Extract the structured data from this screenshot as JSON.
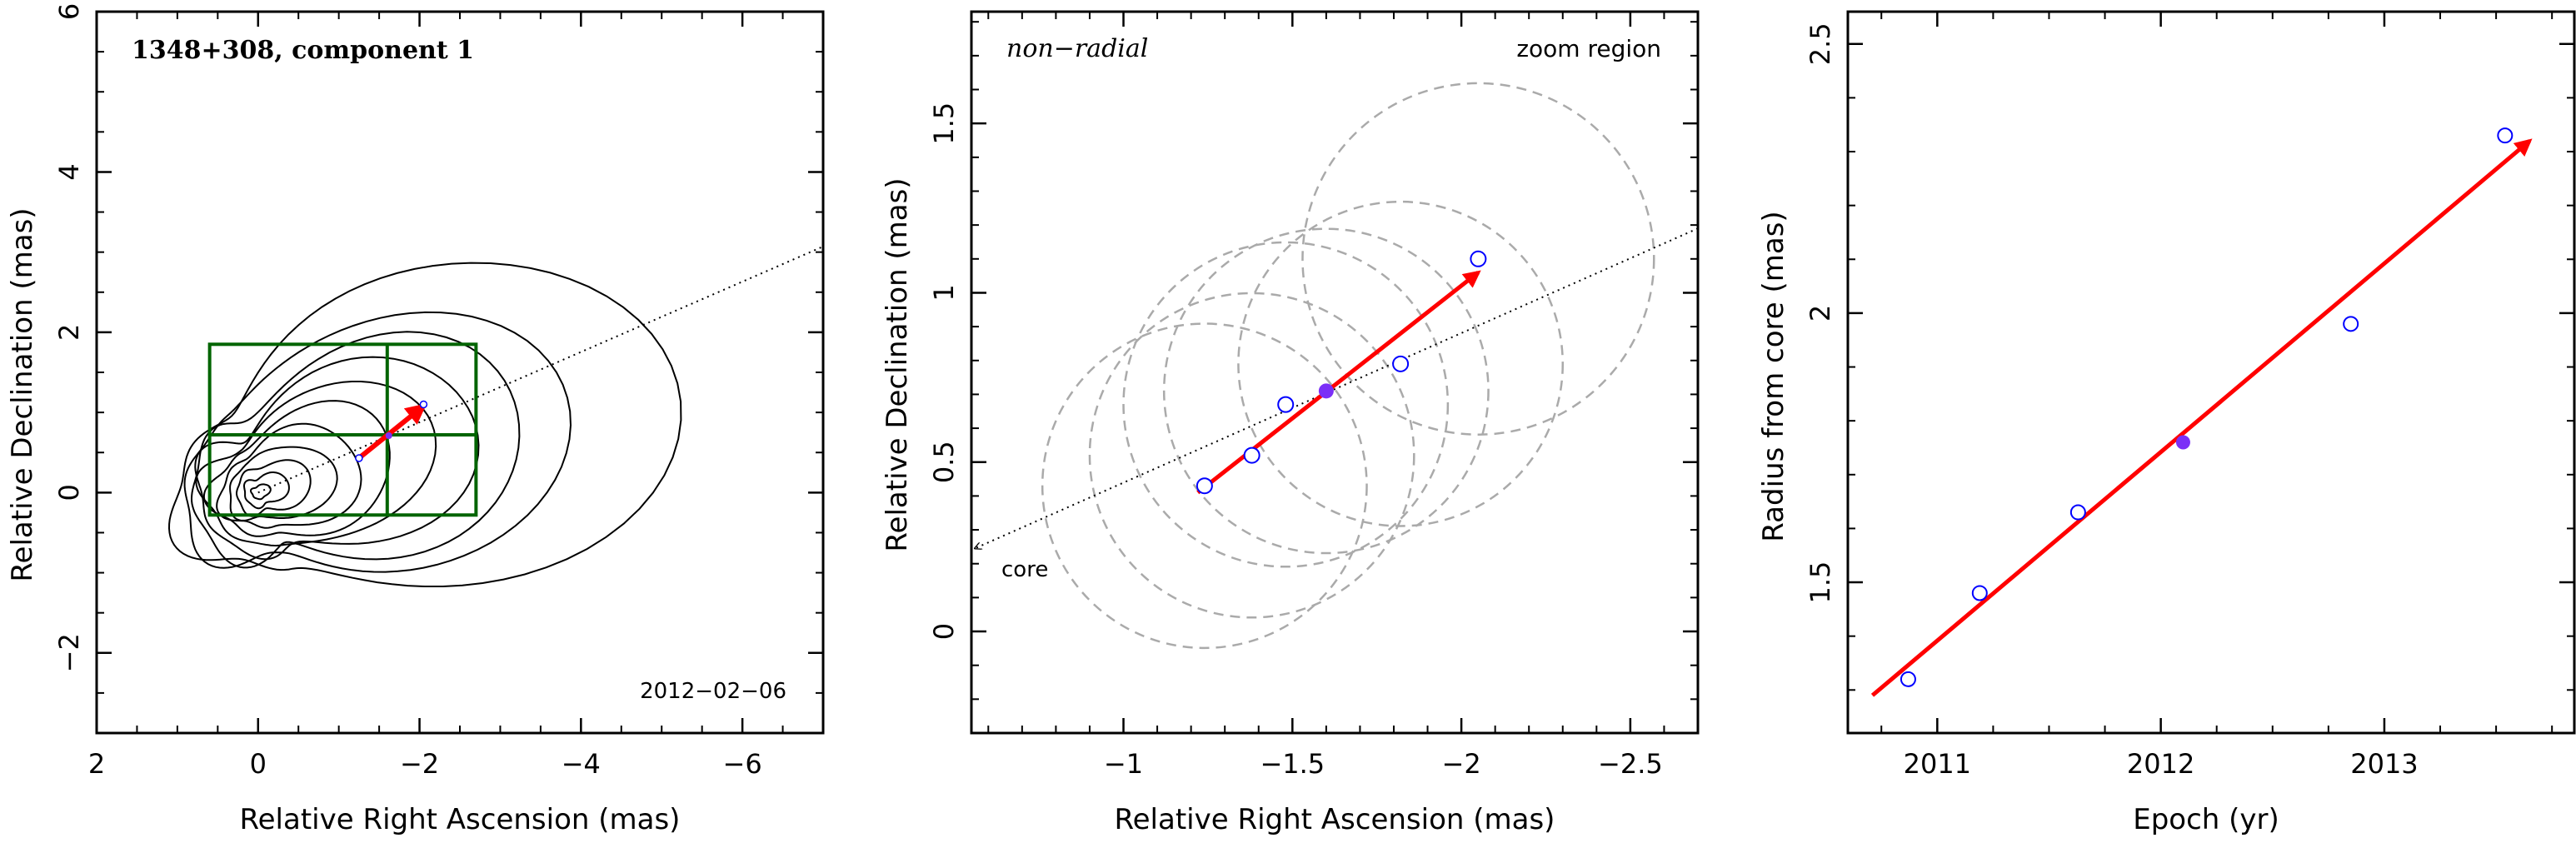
{
  "colors": {
    "axes": "#000000",
    "arrow": "#ff0000",
    "open_point": "#0000ff",
    "filled_point": "#7b2ff7",
    "grid_box": "#006400",
    "circle": "#aaaaaa",
    "contour": "#000000"
  },
  "chart_data": [
    {
      "type": "scatter",
      "title": "1348+308, component 1",
      "annotation": "2012−02−06",
      "xlabel": "Relative Right Ascension (mas)",
      "ylabel": "Relative Declination (mas)",
      "xlim": [
        2,
        -7
      ],
      "ylim": [
        -3,
        6
      ],
      "xticks": [
        2,
        0,
        -2,
        -4,
        -6
      ],
      "xtick_labels": [
        "2",
        "0",
        "−2",
        "−4",
        "−6"
      ],
      "yticks": [
        -2,
        0,
        2,
        4,
        6
      ],
      "ytick_labels": [
        "−2",
        "0",
        "2",
        "4",
        "6"
      ],
      "contour_center": [
        0,
        0
      ],
      "contour_levels": 11,
      "trajectory_line": {
        "from": [
          0,
          0
        ],
        "to": [
          -7,
          3.07
        ]
      },
      "grid_box": {
        "x": [
          0.6,
          -2.7
        ],
        "y": [
          -0.28,
          1.85
        ],
        "x_divider": -1.6,
        "y_divider": 0.72
      },
      "motion_arrow": {
        "from": [
          -1.25,
          0.43
        ],
        "to": [
          -2.05,
          1.08
        ]
      },
      "open_points": [
        [
          -1.25,
          0.43
        ],
        [
          -2.05,
          1.1
        ]
      ],
      "filled_points": [
        [
          -1.62,
          0.71
        ]
      ]
    },
    {
      "type": "scatter",
      "label_left": "non−radial",
      "label_right": "zoom region",
      "core_label": "core",
      "xlabel": "Relative Right Ascension (mas)",
      "ylabel": "Relative Declination (mas)",
      "xlim": [
        -0.55,
        -2.7
      ],
      "ylim": [
        -0.3,
        1.83
      ],
      "xticks": [
        -1,
        -1.5,
        -2,
        -2.5
      ],
      "xtick_labels": [
        "−1",
        "−1.5",
        "−2",
        "−2.5"
      ],
      "yticks": [
        0,
        0.5,
        1,
        1.5
      ],
      "ytick_labels": [
        "0",
        "0.5",
        "1",
        "1.5"
      ],
      "trajectory_line": {
        "from": [
          -2.7,
          1.19
        ],
        "to": [
          -0.56,
          0.245
        ]
      },
      "open_points": [
        [
          -1.24,
          0.43
        ],
        [
          -1.38,
          0.52
        ],
        [
          -1.48,
          0.67
        ],
        [
          -1.82,
          0.79
        ],
        [
          -2.05,
          1.1
        ]
      ],
      "filled_points": [
        [
          -1.6,
          0.71
        ]
      ],
      "circles": [
        {
          "center": [
            -1.24,
            0.43
          ],
          "r": 0.48
        },
        {
          "center": [
            -1.38,
            0.52
          ],
          "r": 0.48
        },
        {
          "center": [
            -1.48,
            0.67
          ],
          "r": 0.48
        },
        {
          "center": [
            -1.6,
            0.71
          ],
          "r": 0.48
        },
        {
          "center": [
            -1.82,
            0.79
          ],
          "r": 0.48
        },
        {
          "center": [
            -2.05,
            1.1
          ],
          "r": 0.52
        }
      ],
      "motion_arrow": {
        "from": [
          -1.22,
          0.41
        ],
        "to": [
          -2.05,
          1.06
        ]
      }
    },
    {
      "type": "scatter",
      "xlabel": "Epoch (yr)",
      "ylabel": "Radius from core (mas)",
      "xlim": [
        2010.6,
        2013.85
      ],
      "ylim": [
        1.22,
        2.56
      ],
      "xticks": [
        2011,
        2012,
        2013
      ],
      "xtick_labels": [
        "2011",
        "2012",
        "2013"
      ],
      "yticks": [
        1.5,
        2,
        2.5
      ],
      "ytick_labels": [
        "1.5",
        "2",
        "2.5"
      ],
      "open_points": [
        [
          2010.87,
          1.32
        ],
        [
          2011.19,
          1.48
        ],
        [
          2011.63,
          1.63
        ],
        [
          2012.85,
          1.98
        ],
        [
          2013.54,
          2.33
        ]
      ],
      "filled_points": [
        [
          2012.1,
          1.76
        ]
      ],
      "fit_arrow": {
        "from": [
          2010.71,
          1.29
        ],
        "to": [
          2013.65,
          2.32
        ]
      }
    }
  ]
}
